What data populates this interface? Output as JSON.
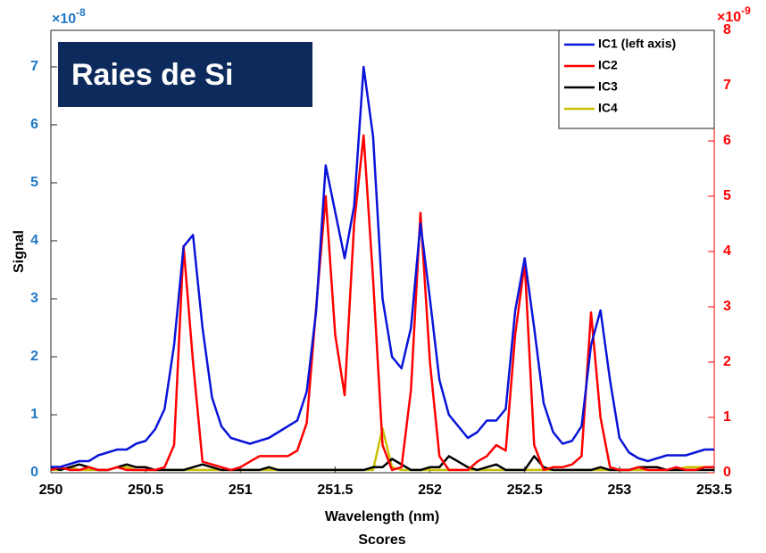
{
  "chart_data": {
    "type": "line",
    "annotation": "Raies de Si",
    "xlabel": "Wavelength (nm)",
    "bottom_title": "Scores",
    "ylabel": "Signal",
    "y_multiplier": {
      "base": "×10",
      "exponent": "-8",
      "color": "#1f77c4"
    },
    "y2_multiplier": {
      "base": "×10",
      "exponent": "-9",
      "color": "#ff0000"
    },
    "xlim": [
      250,
      253.5
    ],
    "xticks": [
      250,
      250.5,
      251,
      251.5,
      252,
      252.5,
      253,
      253.5
    ],
    "ylim": [
      0,
      7.63
    ],
    "yticks": [
      0,
      1,
      2,
      3,
      4,
      5,
      6,
      7
    ],
    "y2lim": [
      0,
      8
    ],
    "y2ticks": [
      0,
      1,
      2,
      3,
      4,
      5,
      6,
      7,
      8
    ],
    "legend": "upper right",
    "x": [
      250,
      250.05,
      250.1,
      250.15,
      250.2,
      250.25,
      250.3,
      250.35,
      250.4,
      250.45,
      250.5,
      250.55,
      250.6,
      250.65,
      250.7,
      250.75,
      250.8,
      250.85,
      250.9,
      250.95,
      251,
      251.05,
      251.1,
      251.15,
      251.2,
      251.25,
      251.3,
      251.35,
      251.4,
      251.45,
      251.5,
      251.55,
      251.6,
      251.65,
      251.7,
      251.75,
      251.8,
      251.85,
      251.9,
      251.95,
      252,
      252.05,
      252.1,
      252.15,
      252.2,
      252.25,
      252.3,
      252.35,
      252.4,
      252.45,
      252.5,
      252.55,
      252.6,
      252.65,
      252.7,
      252.75,
      252.8,
      252.85,
      252.9,
      252.95,
      253,
      253.05,
      253.1,
      253.15,
      253.2,
      253.25,
      253.3,
      253.35,
      253.4,
      253.45,
      253.5
    ],
    "series": [
      {
        "name": "IC1 (left axis)",
        "color": "#0a14d8",
        "values": [
          0.1,
          0.1,
          0.15,
          0.2,
          0.2,
          0.3,
          0.35,
          0.4,
          0.4,
          0.5,
          0.55,
          0.75,
          1.1,
          2.2,
          3.9,
          4.1,
          2.5,
          1.3,
          0.8,
          0.6,
          0.55,
          0.5,
          0.55,
          0.6,
          0.7,
          0.8,
          0.9,
          1.4,
          2.8,
          5.3,
          4.5,
          3.7,
          4.6,
          7.0,
          5.8,
          3.0,
          2.0,
          1.8,
          2.5,
          4.3,
          3.0,
          1.6,
          1.0,
          0.8,
          0.6,
          0.7,
          0.9,
          0.9,
          1.1,
          2.8,
          3.7,
          2.5,
          1.2,
          0.7,
          0.5,
          0.55,
          0.8,
          2.2,
          2.8,
          1.6,
          0.6,
          0.35,
          0.25,
          0.2,
          0.25,
          0.3,
          0.3,
          0.3,
          0.35,
          0.4,
          0.4
        ]
      },
      {
        "name": "IC2",
        "color": "#ff0000",
        "axis": "y2",
        "values": [
          0.05,
          0.1,
          0.05,
          0.05,
          0.1,
          0.05,
          0.05,
          0.1,
          0.05,
          0.05,
          0.05,
          0.05,
          0.1,
          0.5,
          4.1,
          2.0,
          0.2,
          0.15,
          0.1,
          0.05,
          0.1,
          0.2,
          0.3,
          0.3,
          0.3,
          0.3,
          0.4,
          0.9,
          3.0,
          5.0,
          2.5,
          1.4,
          4.5,
          6.1,
          3.5,
          0.5,
          0.05,
          0.1,
          1.5,
          4.7,
          2.0,
          0.3,
          0.05,
          0.05,
          0.05,
          0.2,
          0.3,
          0.5,
          0.4,
          2.5,
          3.8,
          0.5,
          0.05,
          0.1,
          0.1,
          0.15,
          0.3,
          2.9,
          1.0,
          0.1,
          0.05,
          0.05,
          0.1,
          0.05,
          0.05,
          0.05,
          0.1,
          0.05,
          0.05,
          0.1,
          0.1
        ]
      },
      {
        "name": "IC3",
        "color": "#000000",
        "axis": "y2",
        "values": [
          0.1,
          0.05,
          0.1,
          0.15,
          0.1,
          0.05,
          0.05,
          0.1,
          0.15,
          0.1,
          0.1,
          0.05,
          0.05,
          0.05,
          0.05,
          0.1,
          0.15,
          0.1,
          0.05,
          0.05,
          0.05,
          0.05,
          0.05,
          0.1,
          0.05,
          0.05,
          0.05,
          0.05,
          0.05,
          0.05,
          0.05,
          0.05,
          0.05,
          0.05,
          0.1,
          0.1,
          0.25,
          0.15,
          0.05,
          0.05,
          0.1,
          0.1,
          0.3,
          0.2,
          0.1,
          0.05,
          0.1,
          0.15,
          0.05,
          0.05,
          0.05,
          0.3,
          0.1,
          0.05,
          0.05,
          0.05,
          0.05,
          0.05,
          0.1,
          0.05,
          0.05,
          0.05,
          0.1,
          0.1,
          0.1,
          0.05,
          0.05,
          0.05,
          0.05,
          0.05,
          0.05
        ]
      },
      {
        "name": "IC4",
        "color": "#c8c000",
        "axis": "y2",
        "values": [
          0.05,
          0.05,
          0.1,
          0.05,
          0.05,
          0.05,
          0.05,
          0.1,
          0.1,
          0.05,
          0.05,
          0.05,
          0.05,
          0.05,
          0.05,
          0.05,
          0.05,
          0.05,
          0.05,
          0.05,
          0.05,
          0.05,
          0.05,
          0.05,
          0.05,
          0.05,
          0.05,
          0.05,
          0.05,
          0.05,
          0.05,
          0.05,
          0.05,
          0.05,
          0.05,
          0.8,
          0.1,
          0.05,
          0.05,
          0.05,
          0.05,
          0.05,
          0.05,
          0.05,
          0.05,
          0.05,
          0.05,
          0.05,
          0.05,
          0.05,
          0.05,
          0.05,
          0.05,
          0.05,
          0.05,
          0.05,
          0.05,
          0.05,
          0.05,
          0.05,
          0.05,
          0.05,
          0.05,
          0.05,
          0.05,
          0.05,
          0.05,
          0.1,
          0.1,
          0.1,
          0.1
        ]
      }
    ]
  }
}
